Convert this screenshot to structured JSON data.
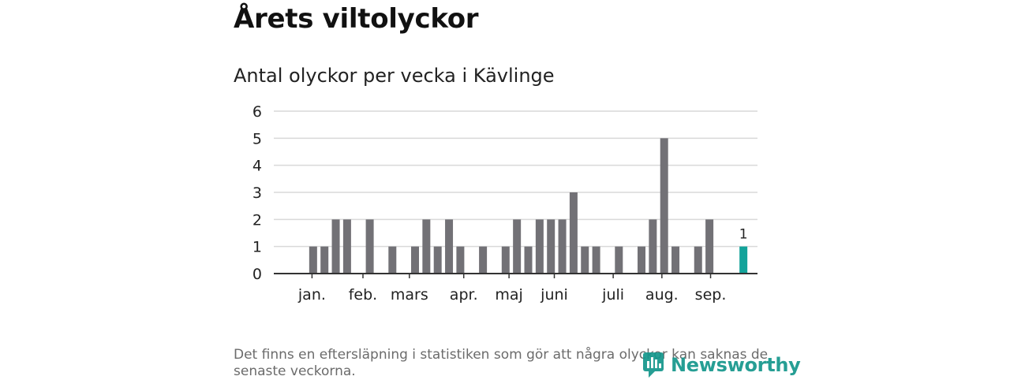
{
  "title": "Årets viltolyckor",
  "footnote": "Det finns en eftersläpning i statistiken som gör att några olyckor kan saknas de senaste veckorna.",
  "brand": {
    "name": "Newsworthy",
    "color": "#14968c"
  },
  "chart_data": {
    "type": "bar",
    "title": "Antal olyckor per vecka i Kävlinge",
    "xlabel": "",
    "ylabel": "",
    "ylim": [
      0,
      6
    ],
    "yticks": [
      0,
      1,
      2,
      3,
      4,
      5,
      6
    ],
    "grid": true,
    "bar_color": "#727176",
    "highlight_color": "#13a39a",
    "weeks": [
      1,
      2,
      3,
      4,
      5,
      6,
      7,
      8,
      9,
      10,
      11,
      12,
      13,
      14,
      15,
      16,
      17,
      18,
      19,
      20,
      21,
      22,
      23,
      24,
      25,
      26,
      27,
      28,
      29,
      30,
      31,
      32,
      33,
      34,
      35,
      36,
      37,
      38,
      39,
      40,
      41,
      42,
      43
    ],
    "values": [
      0,
      1,
      1,
      2,
      2,
      0,
      2,
      0,
      1,
      0,
      1,
      2,
      1,
      2,
      1,
      0,
      1,
      0,
      1,
      2,
      1,
      2,
      2,
      2,
      3,
      1,
      1,
      0,
      1,
      0,
      1,
      2,
      5,
      1,
      0,
      1,
      2,
      0,
      0,
      1,
      0,
      0,
      0
    ],
    "highlight_index": 39,
    "highlight_label": "1",
    "month_ticks": [
      {
        "label": "jan.",
        "week": 1.9
      },
      {
        "label": "feb.",
        "week": 6.4
      },
      {
        "label": "mars",
        "week": 10.5
      },
      {
        "label": "apr.",
        "week": 15.3
      },
      {
        "label": "maj",
        "week": 19.3
      },
      {
        "label": "juni",
        "week": 23.3
      },
      {
        "label": "juli",
        "week": 28.5
      },
      {
        "label": "aug.",
        "week": 32.8
      },
      {
        "label": "sep.",
        "week": 37.1
      }
    ]
  }
}
